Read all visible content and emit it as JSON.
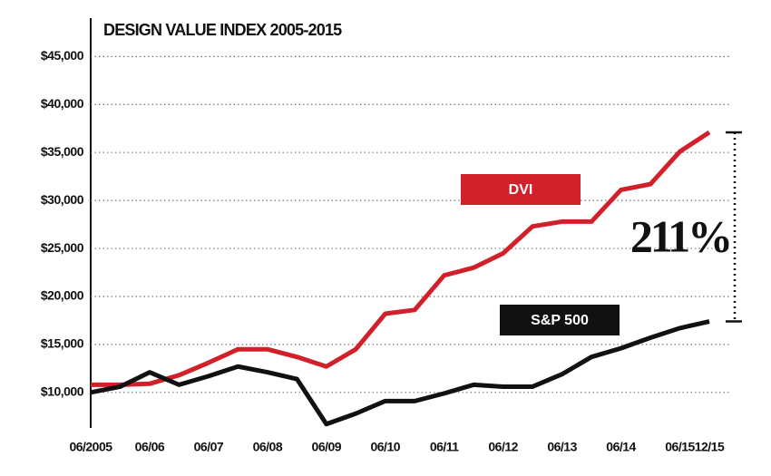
{
  "chart_data": {
    "type": "line",
    "title": "DESIGN VALUE INDEX 2005-2015",
    "categories": [
      "06/2005",
      null,
      "06/06",
      null,
      "06/07",
      null,
      "06/08",
      null,
      "06/09",
      null,
      "06/10",
      null,
      "06/11",
      null,
      "06/12",
      null,
      "06/13",
      null,
      "06/14",
      null,
      "06/15",
      "12/15"
    ],
    "series": [
      {
        "name": "DVI",
        "color": "#d2202a",
        "values": [
          10800,
          10800,
          10900,
          11800,
          13100,
          14500,
          14500,
          13700,
          12700,
          14500,
          18200,
          18600,
          22200,
          23000,
          24500,
          27300,
          27800,
          27800,
          31100,
          31700,
          35100,
          37100
        ]
      },
      {
        "name": "S&P 500",
        "color": "#111111",
        "values": [
          10000,
          10600,
          12100,
          10800,
          11700,
          12700,
          12100,
          11400,
          6700,
          7800,
          9100,
          9100,
          9900,
          10800,
          10600,
          10600,
          11900,
          13700,
          14600,
          15700,
          16700,
          17400
        ]
      }
    ],
    "ylim": [
      6300,
      49000
    ],
    "yticks": [
      {
        "value": 10000,
        "label": "$10,000"
      },
      {
        "value": 15000,
        "label": "$15,000"
      },
      {
        "value": 20000,
        "label": "$20,000"
      },
      {
        "value": 25000,
        "label": "$25,000"
      },
      {
        "value": 30000,
        "label": "$30,000"
      },
      {
        "value": 35000,
        "label": "$35,000"
      },
      {
        "value": 40000,
        "label": "$40,000"
      },
      {
        "value": 45000,
        "label": "$45,000"
      }
    ],
    "grid": true,
    "annotation": "211%"
  }
}
